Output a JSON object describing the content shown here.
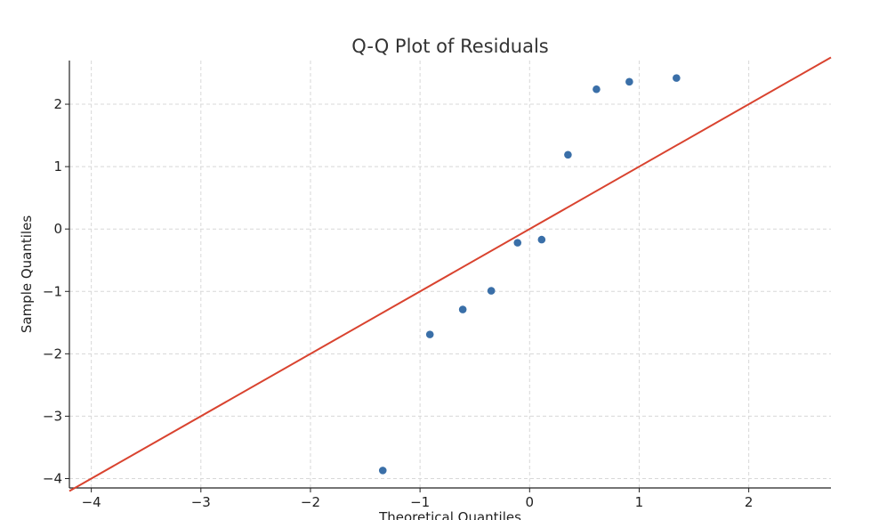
{
  "chart_data": {
    "type": "scatter",
    "title": "Q-Q Plot of Residuals",
    "xlabel": "Theoretical Quantiles",
    "ylabel": "Sample Quantiles",
    "xlim": [
      -4.2,
      2.75
    ],
    "ylim": [
      -4.15,
      2.7
    ],
    "xticks": [
      -4,
      -3,
      -2,
      -1,
      0,
      1,
      2
    ],
    "yticks": [
      -4,
      -3,
      -2,
      -1,
      0,
      1,
      2
    ],
    "xtick_labels": [
      "−4",
      "−3",
      "−2",
      "−1",
      "0",
      "1",
      "2"
    ],
    "ytick_labels": [
      "−4",
      "−3",
      "−2",
      "−1",
      "0",
      "1",
      "2"
    ],
    "grid": true,
    "series": [
      {
        "kind": "points",
        "color": "#3a6fa8",
        "x": [
          -1.34,
          -0.91,
          -0.61,
          -0.35,
          -0.11,
          0.11,
          0.35,
          0.61,
          0.91,
          1.34
        ],
        "y": [
          -3.87,
          -1.69,
          -1.29,
          -0.99,
          -0.22,
          -0.17,
          1.19,
          2.24,
          2.36,
          2.42
        ]
      },
      {
        "kind": "reference-line",
        "color": "#d9432f",
        "x": [
          -4.2,
          2.75
        ],
        "y": [
          -4.2,
          2.75
        ]
      }
    ]
  }
}
